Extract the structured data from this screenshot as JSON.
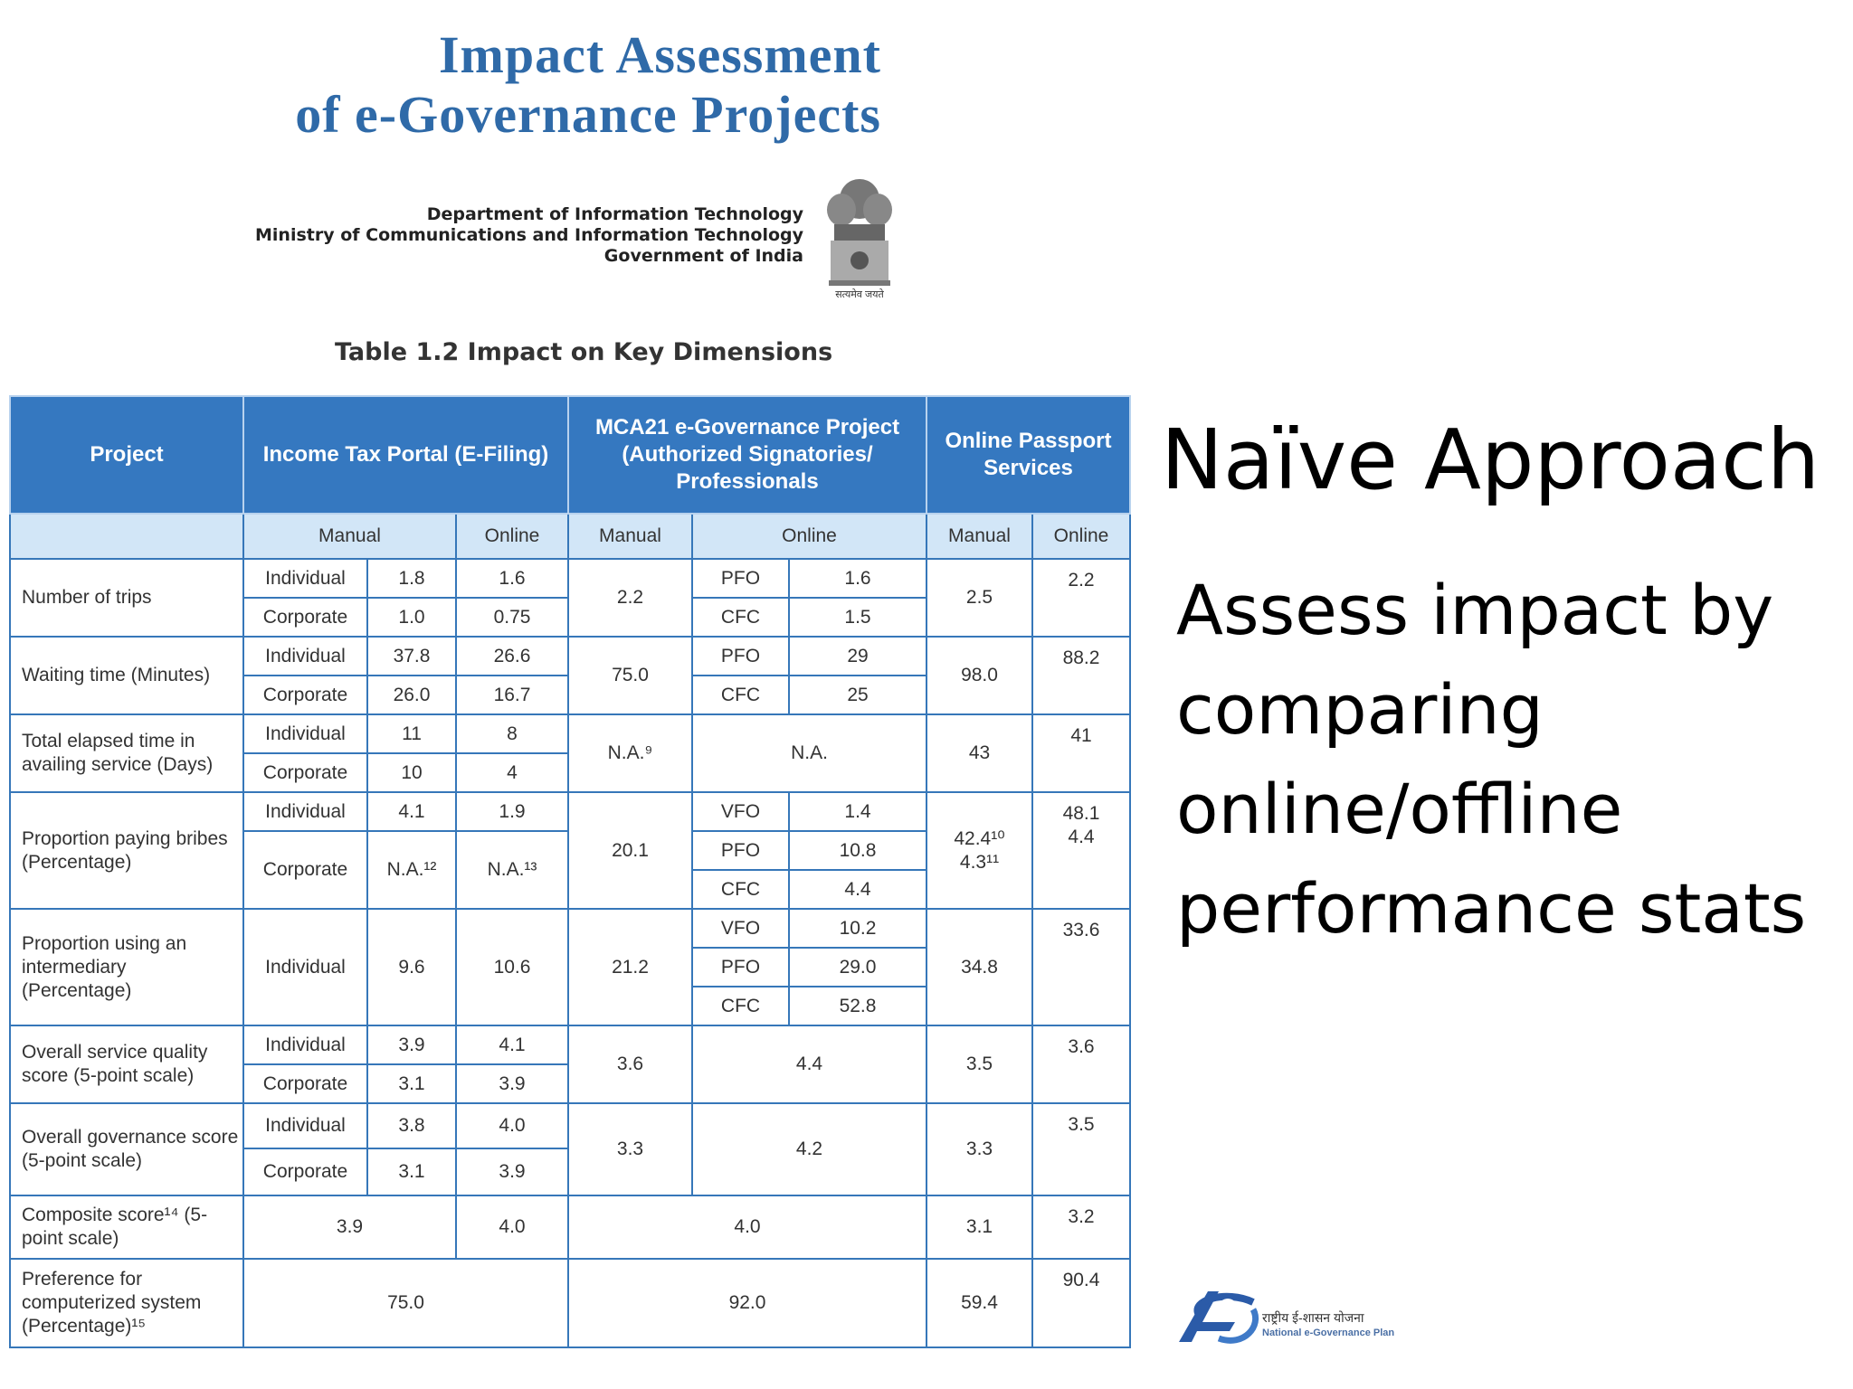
{
  "document": {
    "title_line1": "Impact Assessment",
    "title_line2": "of e-Governance Projects",
    "dept_line1": "Department of Information Technology",
    "dept_line2": "Ministry of Communications and Information Technology",
    "dept_line3": "Government of India",
    "emblem_motto": "सत्यमेव जयते",
    "table_caption": "Table 1.2 Impact on Key Dimensions"
  },
  "slide": {
    "title": "Naïve Approach",
    "body_lines": [
      "Assess impact by",
      "comparing",
      "online/offline",
      "performance stats"
    ]
  },
  "logo": {
    "line1": "राष्ट्रीय ई-शासन योजना",
    "line2": "National e-Governance Plan"
  },
  "table": {
    "headers": {
      "project": "Project",
      "income_tax": "Income Tax Portal (E-Filing)",
      "mca21": "MCA21 e-Governance Project (Authorized Signatories/ Professionals",
      "passport": "Online Passport Services"
    },
    "subheaders": {
      "it_manual": "Manual",
      "it_online": "Online",
      "mca_manual": "Manual",
      "mca_online": "Online",
      "pp_manual": "Manual",
      "pp_online": "Online"
    },
    "types": {
      "individual": "Individual",
      "corporate": "Corporate"
    },
    "rows": {
      "trips": {
        "label": "Number of trips",
        "ind_manual": "1.8",
        "ind_online": "1.6",
        "corp_manual": "1.0",
        "corp_online": "0.75",
        "mca_manual": "2.2",
        "mca_k1": "PFO",
        "mca_v1": "1.6",
        "mca_k2": "CFC",
        "mca_v2": "1.5",
        "pp_manual": "2.5",
        "pp_online": "2.2"
      },
      "waiting": {
        "label": "Waiting time (Minutes)",
        "ind_manual": "37.8",
        "ind_online": "26.6",
        "corp_manual": "26.0",
        "corp_online": "16.7",
        "mca_manual": "75.0",
        "mca_k1": "PFO",
        "mca_v1": "29",
        "mca_k2": "CFC",
        "mca_v2": "25",
        "pp_manual": "98.0",
        "pp_online": "88.2"
      },
      "elapsed": {
        "label": "Total elapsed time in availing service (Days)",
        "ind_manual": "11",
        "ind_online": "8",
        "corp_manual": "10",
        "corp_online": "4",
        "mca_manual": "N.A.⁹",
        "mca_online": "N.A.",
        "pp_manual": "43",
        "pp_online": "41"
      },
      "bribes": {
        "label": "Proportion paying bribes (Percentage)",
        "ind_manual": "4.1",
        "ind_online": "1.9",
        "corp_manual": "N.A.¹²",
        "corp_online": "N.A.¹³",
        "mca_manual": "20.1",
        "mca_k1": "VFO",
        "mca_v1": "1.4",
        "mca_k2": "PFO",
        "mca_v2": "10.8",
        "mca_k3": "CFC",
        "mca_v3": "4.4",
        "pp_manual_1": "42.4¹⁰",
        "pp_manual_2": "4.3¹¹",
        "pp_online_1": "48.1",
        "pp_online_2": "4.4"
      },
      "intermediary": {
        "label": "Proportion using an intermediary (Percentage)",
        "ind_manual": "9.6",
        "ind_online": "10.6",
        "mca_manual": "21.2",
        "mca_k1": "VFO",
        "mca_v1": "10.2",
        "mca_k2": "PFO",
        "mca_v2": "29.0",
        "mca_k3": "CFC",
        "mca_v3": "52.8",
        "pp_manual": "34.8",
        "pp_online": "33.6"
      },
      "quality": {
        "label": "Overall service quality score (5-point scale)",
        "ind_manual": "3.9",
        "ind_online": "4.1",
        "corp_manual": "3.1",
        "corp_online": "3.9",
        "mca_manual": "3.6",
        "mca_online": "4.4",
        "pp_manual": "3.5",
        "pp_online": "3.6"
      },
      "governance": {
        "label": "Overall governance score (5-point scale)",
        "ind_manual": "3.8",
        "ind_online": "4.0",
        "corp_manual": "3.1",
        "corp_online": "3.9",
        "mca_manual": "3.3",
        "mca_online": "4.2",
        "pp_manual": "3.3",
        "pp_online": "3.5"
      },
      "composite": {
        "label": "Composite score¹⁴ (5-point scale)",
        "it_manual": "3.9",
        "it_online": "4.0",
        "mca": "4.0",
        "pp_manual": "3.1",
        "pp_online": "3.2"
      },
      "preference": {
        "label": "Preference for computerized system (Percentage)¹⁵",
        "it": "75.0",
        "mca": "92.0",
        "pp_manual": "59.4",
        "pp_online": "90.4"
      }
    }
  }
}
